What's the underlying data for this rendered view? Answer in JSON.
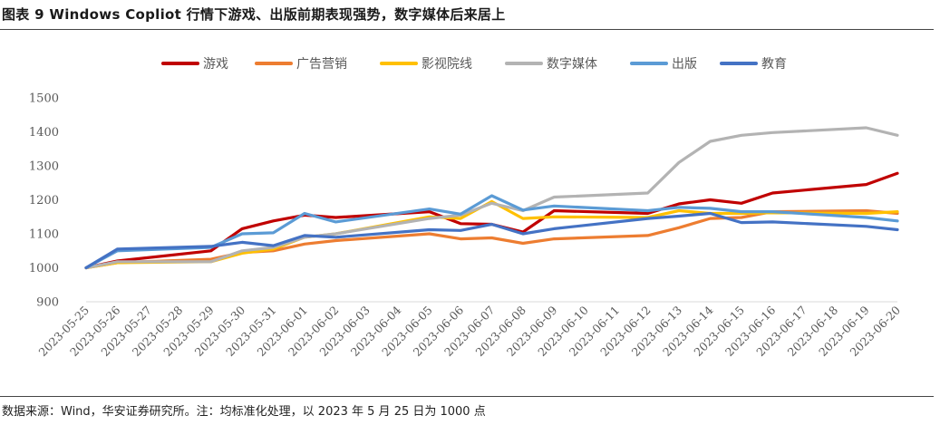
{
  "figure": {
    "title": "图表 9 Windows Copliot 行情下游戏、出版前期表现强势，数字媒体后来居上",
    "source": "数据来源：Wind，华安证券研究所。注：均标准化处理，以 2023 年 5 月 25 日为 1000 点"
  },
  "chart_data": {
    "type": "line",
    "x": [
      "2023-05-25",
      "2023-05-26",
      "2023-05-29",
      "2023-05-30",
      "2023-05-31",
      "2023-06-01",
      "2023-06-02",
      "2023-06-05",
      "2023-06-06",
      "2023-06-07",
      "2023-06-08",
      "2023-06-09",
      "2023-06-12",
      "2023-06-13",
      "2023-06-14",
      "2023-06-15",
      "2023-06-16",
      "2023-06-19",
      "2023-06-20"
    ],
    "x_tick_labels": [
      "2023-05-25",
      "2023-05-26",
      "2023-05-27",
      "2023-05-28",
      "2023-05-29",
      "2023-05-30",
      "2023-05-31",
      "2023-06-01",
      "2023-06-02",
      "2023-06-03",
      "2023-06-04",
      "2023-06-05",
      "2023-06-06",
      "2023-06-07",
      "2023-06-08",
      "2023-06-09",
      "2023-06-10",
      "2023-06-11",
      "2023-06-12",
      "2023-06-13",
      "2023-06-14",
      "2023-06-15",
      "2023-06-16",
      "2023-06-17",
      "2023-06-18",
      "2023-06-19",
      "2023-06-20"
    ],
    "ylim": [
      900,
      1500
    ],
    "yticks": [
      900,
      1000,
      1100,
      1200,
      1300,
      1400,
      1500
    ],
    "grid": false,
    "legend_position": "top",
    "series": [
      {
        "name": "游戏",
        "color": "#C00000",
        "values": [
          1000,
          1020,
          1050,
          1115,
          1138,
          1155,
          1148,
          1165,
          1130,
          1128,
          1105,
          1168,
          1160,
          1188,
          1200,
          1190,
          1220,
          1245,
          1278
        ]
      },
      {
        "name": "广告营销",
        "color": "#ED7D31",
        "values": [
          1000,
          1015,
          1025,
          1045,
          1050,
          1070,
          1080,
          1100,
          1085,
          1088,
          1072,
          1085,
          1095,
          1118,
          1145,
          1148,
          1165,
          1168,
          1160
        ]
      },
      {
        "name": "影视院线",
        "color": "#FFC000",
        "values": [
          1000,
          1015,
          1018,
          1043,
          1055,
          1090,
          1100,
          1150,
          1145,
          1195,
          1145,
          1150,
          1148,
          1168,
          1160,
          1160,
          1162,
          1160,
          1165
        ]
      },
      {
        "name": "数字媒体",
        "color": "#B3B3B3",
        "values": [
          1000,
          1018,
          1018,
          1050,
          1060,
          1090,
          1100,
          1145,
          1155,
          1190,
          1168,
          1208,
          1220,
          1310,
          1372,
          1390,
          1398,
          1412,
          1390
        ]
      },
      {
        "name": "出版",
        "color": "#5B9BD5",
        "values": [
          1000,
          1050,
          1060,
          1100,
          1103,
          1160,
          1135,
          1173,
          1158,
          1212,
          1170,
          1182,
          1168,
          1178,
          1175,
          1165,
          1165,
          1148,
          1138
        ]
      },
      {
        "name": "教育",
        "color": "#4472C4",
        "values": [
          1000,
          1055,
          1063,
          1075,
          1065,
          1095,
          1090,
          1112,
          1110,
          1128,
          1100,
          1115,
          1145,
          1152,
          1160,
          1133,
          1135,
          1122,
          1112
        ]
      }
    ]
  }
}
